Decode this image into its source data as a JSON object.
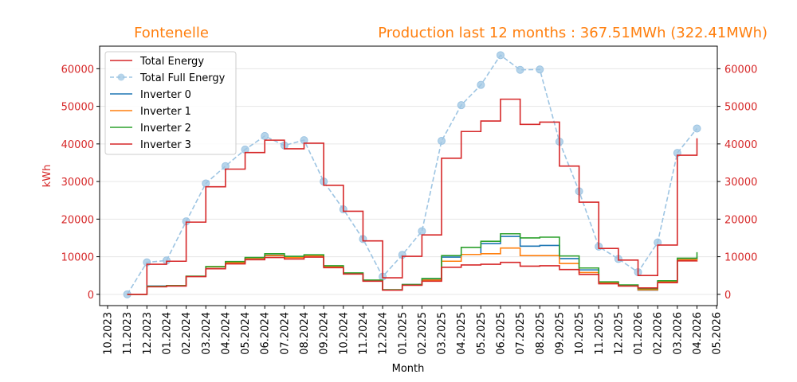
{
  "chart_data": {
    "type": "line",
    "title_left": "Fontenelle",
    "title_right": "Production last 12 months : 367.51MWh (322.41MWh)",
    "xlabel": "Month",
    "ylabel": "kWh",
    "ylim": [
      -3000,
      66000
    ],
    "yticks": [
      0,
      10000,
      20000,
      30000,
      40000,
      50000,
      60000
    ],
    "x_ticks": [
      "10.2023",
      "11.2023",
      "12.2023",
      "01.2024",
      "02.2024",
      "03.2024",
      "04.2024",
      "05.2024",
      "06.2024",
      "07.2024",
      "08.2024",
      "09.2024",
      "10.2024",
      "11.2024",
      "12.2024",
      "01.2025",
      "02.2025",
      "03.2025",
      "04.2025",
      "05.2025",
      "06.2025",
      "07.2025",
      "08.2025",
      "09.2025",
      "10.2025",
      "11.2025",
      "12.2025",
      "01.2026",
      "02.2026",
      "03.2026",
      "04.2026",
      "05.2026"
    ],
    "x": [
      "11.2023",
      "12.2023",
      "01.2024",
      "02.2024",
      "03.2024",
      "04.2024",
      "05.2024",
      "06.2024",
      "07.2024",
      "08.2024",
      "09.2024",
      "10.2024",
      "11.2024",
      "12.2024",
      "01.2025",
      "02.2025",
      "03.2025",
      "04.2025",
      "05.2025",
      "06.2025",
      "07.2025",
      "08.2025",
      "09.2025",
      "10.2025",
      "11.2025",
      "12.2025",
      "01.2026",
      "02.2026",
      "03.2026",
      "04.2026"
    ],
    "grid": "horizontal",
    "legend_position": "top-left",
    "series": [
      {
        "name": "Total Energy",
        "kind": "step",
        "color": "#d62728",
        "values": [
          0,
          8000,
          8800,
          19200,
          28600,
          33300,
          37700,
          41000,
          38700,
          40200,
          29000,
          22100,
          14200,
          4400,
          10100,
          15800,
          36200,
          43300,
          46100,
          51900,
          45200,
          45800,
          34100,
          24500,
          12200,
          9100,
          5000,
          13100,
          37000,
          41500
        ]
      },
      {
        "name": "Total Full Energy",
        "kind": "dashed-markers",
        "color": "#9ec5e3",
        "values": [
          0,
          8500,
          9000,
          19400,
          29500,
          34100,
          38500,
          42100,
          39600,
          41000,
          30000,
          22600,
          14700,
          4700,
          10500,
          16800,
          40800,
          50300,
          55700,
          63600,
          59700,
          59800,
          40600,
          27400,
          12700,
          9400,
          5900,
          13800,
          37600,
          44100
        ]
      },
      {
        "name": "Inverter 0",
        "kind": "step",
        "color": "#1f77b4",
        "values": [
          0,
          2200,
          2300,
          4800,
          7300,
          8500,
          9600,
          10400,
          9900,
          10300,
          7500,
          5600,
          3700,
          1200,
          2600,
          3900,
          9900,
          10600,
          13500,
          15400,
          12800,
          13000,
          9500,
          6500,
          3200,
          2400,
          1100,
          3400,
          9300,
          10000
        ]
      },
      {
        "name": "Inverter 1",
        "kind": "step",
        "color": "#ff7f0e",
        "values": [
          0,
          2100,
          2300,
          4800,
          7300,
          8400,
          9600,
          10300,
          9800,
          10200,
          7400,
          5500,
          3600,
          1200,
          2500,
          3800,
          8800,
          10600,
          10800,
          12300,
          10300,
          10300,
          8200,
          5800,
          3100,
          2300,
          1200,
          3300,
          9200,
          9500
        ]
      },
      {
        "name": "Inverter 2",
        "kind": "step",
        "color": "#2ca02c",
        "values": [
          0,
          2100,
          2300,
          4800,
          7400,
          8700,
          9800,
          10800,
          10100,
          10500,
          7600,
          5700,
          3800,
          1200,
          2600,
          4200,
          10300,
          12500,
          14100,
          16100,
          15000,
          15200,
          10200,
          7000,
          3300,
          2500,
          1500,
          3600,
          9600,
          11200
        ]
      },
      {
        "name": "Inverter 3",
        "kind": "step",
        "color": "#d62728",
        "values": [
          0,
          2000,
          2200,
          4700,
          6800,
          8100,
          9200,
          9800,
          9400,
          9900,
          7100,
          5400,
          3500,
          1100,
          2400,
          3500,
          7200,
          7800,
          8000,
          8500,
          7500,
          7600,
          6600,
          5300,
          2800,
          2200,
          1700,
          3100,
          8900,
          9000
        ]
      }
    ]
  }
}
